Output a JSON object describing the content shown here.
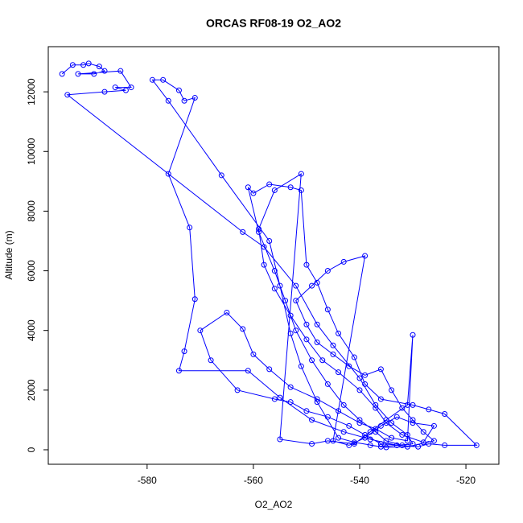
{
  "chart_data": {
    "type": "line",
    "title": "ORCAS RF08-19 O2_AO2",
    "x_label": "O2_AO2",
    "y_label": "Altitude (m)",
    "xlim": [
      -598.6,
      -513.8
    ],
    "ylim": [
      -486,
      13514
    ],
    "xticks": [
      -580,
      -560,
      -540,
      -520
    ],
    "yticks": [
      0,
      2000,
      4000,
      6000,
      8000,
      10000,
      12000
    ],
    "grid": false,
    "marker": "open-circle",
    "x": [
      -596,
      -594,
      -592,
      -591,
      -589,
      -588,
      -590,
      -593,
      -585,
      -583,
      -586,
      -584,
      -588,
      -595,
      -562,
      -558,
      -552,
      -548,
      -545,
      -540,
      -537,
      -534,
      -531,
      -530,
      -536,
      -541,
      -544,
      -548,
      -551,
      -553,
      -555,
      -557,
      -566,
      -576,
      -579,
      -577,
      -574,
      -573,
      -571,
      -576,
      -572,
      -571,
      -573,
      -574,
      -561,
      -555,
      -549,
      -543,
      -538,
      -533,
      -529,
      -527,
      -524,
      -518,
      -524,
      -527,
      -530,
      -536,
      -539,
      -541,
      -544,
      -546,
      -548,
      -550,
      -551,
      -553,
      -557,
      -560,
      -561,
      -559,
      -556,
      -554,
      -552,
      -549,
      -546,
      -543,
      -540,
      -537,
      -535,
      -532,
      -536,
      -539,
      -542,
      -546,
      -550,
      -553,
      -556,
      -563,
      -568,
      -570,
      -565,
      -562,
      -560,
      -557,
      -553,
      -548,
      -544,
      -540,
      -537,
      -534,
      -531,
      -530,
      -531,
      -535,
      -538,
      -541,
      -546,
      -549,
      -555,
      -551,
      -556,
      -559,
      -558,
      -556,
      -553,
      -550,
      -547,
      -544,
      -540,
      -537,
      -535,
      -532,
      -528,
      -526,
      -530,
      -533,
      -536,
      -539,
      -542,
      -545,
      -539,
      -543,
      -546,
      -549,
      -552,
      -550,
      -548,
      -545,
      -542,
      -539,
      -536,
      -534,
      -532,
      -530,
      -528,
      -526,
      -531,
      -535,
      -538
    ],
    "series": [
      {
        "name": "O2_AO2",
        "color": "#0000ff",
        "values": [
          12600,
          12900,
          12900,
          12950,
          12850,
          12700,
          12600,
          12600,
          12700,
          12150,
          12150,
          12050,
          12000,
          11900,
          7300,
          6800,
          5500,
          4200,
          3500,
          2400,
          1500,
          900,
          500,
          200,
          100,
          250,
          400,
          1600,
          2800,
          3900,
          5500,
          7000,
          9200,
          11700,
          12400,
          12400,
          12050,
          11700,
          11800,
          9250,
          7450,
          5050,
          3300,
          2650,
          2650,
          1750,
          1000,
          600,
          350,
          150,
          100,
          200,
          150,
          150,
          1200,
          1350,
          1500,
          1700,
          2200,
          3100,
          3900,
          4700,
          5600,
          6200,
          8700,
          8800,
          8900,
          8600,
          8800,
          7300,
          6000,
          5000,
          4000,
          3000,
          2200,
          1500,
          1000,
          600,
          300,
          150,
          200,
          500,
          800,
          1100,
          1300,
          1600,
          1700,
          2000,
          3000,
          4000,
          4600,
          4050,
          3200,
          2700,
          2100,
          1700,
          1300,
          900,
          700,
          400,
          300,
          3850,
          1500,
          1000,
          600,
          200,
          300,
          200,
          350,
          9250,
          8700,
          7400,
          6200,
          5400,
          4500,
          3700,
          3000,
          2600,
          2000,
          1400,
          900,
          500,
          250,
          800,
          900,
          1100,
          800,
          400,
          150,
          300,
          6500,
          6300,
          6000,
          5500,
          5000,
          4200,
          3600,
          3200,
          2800,
          2500,
          2700,
          2000,
          1400,
          1000,
          600,
          300,
          100,
          80,
          150
        ]
      }
    ]
  }
}
